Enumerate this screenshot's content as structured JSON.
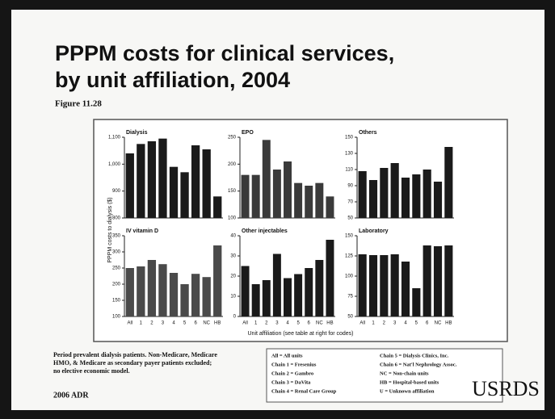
{
  "slide": {
    "title_line1": "PPPM costs for clinical services,",
    "title_line2": "by unit affiliation, 2004",
    "figure": "Figure 11.28",
    "y_label": "PPPM costs to dialysis ($)",
    "x_label": "Unit affiliation (see table at right for codes)",
    "footnote": [
      "Period prevalent dialysis patients. Non-Medicare, Medicare",
      "HMO, & Medicare as secondary payer patients excluded;",
      "no elective economic model."
    ],
    "source": "2006 ADR",
    "logo": "USRDS",
    "legend_left": [
      "All = All units",
      "Chain 1 = Fresenius",
      "Chain 2 = Gambro",
      "Chain 3 = DaVita",
      "Chain 4 = Renal Care Group"
    ],
    "legend_right": [
      "Chain 5 = Dialysis Clinics, Inc.",
      "Chain 6 = Nat'l Nephrology Assoc.",
      "NC = Non-chain units",
      "HB = Hospital-based units",
      "U = Unknown affiliation"
    ]
  },
  "chart_data": [
    {
      "type": "bar",
      "title": "Dialysis",
      "color": "#1a1a1a",
      "ylim": [
        800,
        1100
      ],
      "yticks": [
        800,
        900,
        {
          "value": 1000,
          "label": "1,000"
        },
        {
          "value": 1100,
          "label": "1,100"
        }
      ],
      "values": [
        1040,
        1075,
        1085,
        1095,
        990,
        970,
        1070,
        1055,
        880
      ]
    },
    {
      "type": "bar",
      "title": "EPO",
      "color": "#3a3a3a",
      "ylim": [
        100,
        250
      ],
      "yticks": [
        100,
        150,
        200,
        250
      ],
      "values": [
        180,
        180,
        245,
        190,
        205,
        165,
        160,
        165,
        140
      ]
    },
    {
      "type": "bar",
      "title": "Others",
      "color": "#1a1a1a",
      "ylim": [
        50,
        150
      ],
      "yticks": [
        50,
        70,
        90,
        110,
        130,
        150
      ],
      "values": [
        108,
        97,
        112,
        118,
        100,
        104,
        110,
        95,
        138
      ]
    },
    {
      "type": "bar",
      "title": "IV vitamin D",
      "color": "#4a4a4a",
      "ylim": [
        100,
        350
      ],
      "yticks": [
        100,
        150,
        200,
        250,
        300,
        350
      ],
      "categories": [
        "All",
        "1",
        "2",
        "3",
        "4",
        "5",
        "6",
        "NC",
        "HB"
      ],
      "values": [
        250,
        255,
        275,
        262,
        235,
        200,
        232,
        222,
        320
      ]
    },
    {
      "type": "bar",
      "title": "Other injectables",
      "color": "#1a1a1a",
      "ylim": [
        0,
        40
      ],
      "yticks": [
        0,
        10,
        20,
        30,
        40
      ],
      "categories": [
        "All",
        "1",
        "2",
        "3",
        "4",
        "5",
        "6",
        "NC",
        "HB"
      ],
      "values": [
        25,
        16,
        18,
        31,
        19,
        21,
        24,
        28,
        38
      ]
    },
    {
      "type": "bar",
      "title": "Laboratory",
      "color": "#1a1a1a",
      "ylim": [
        50,
        150
      ],
      "yticks": [
        50,
        75,
        100,
        125,
        150
      ],
      "categories": [
        "All",
        "1",
        "2",
        "3",
        "4",
        "5",
        "6",
        "NC",
        "HB"
      ],
      "values": [
        127,
        126,
        126,
        127,
        118,
        85,
        138,
        137,
        138
      ]
    }
  ]
}
